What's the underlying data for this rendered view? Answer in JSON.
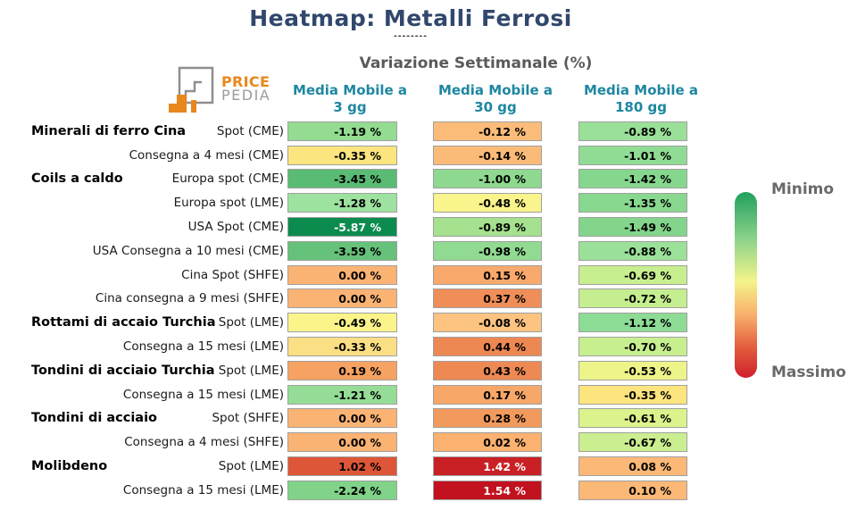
{
  "title": "Heatmap: Metalli Ferrosi",
  "title_underline": "--------",
  "subtitle": "Variazione Settimanale (%)",
  "logo": {
    "top": "PRICE",
    "bottom": "PEDIA"
  },
  "columns": [
    {
      "line1": "Media Mobile a",
      "line2": "3 gg"
    },
    {
      "line1": "Media Mobile a",
      "line2": "30 gg"
    },
    {
      "line1": "Media Mobile a",
      "line2": "180 gg"
    }
  ],
  "legend": {
    "min_label": "Minimo",
    "max_label": "Massimo"
  },
  "colors": {
    "title": "#31476c",
    "subtitle": "#5a5a5a",
    "column_header": "#1e87a0",
    "legend_label": "#6a6a6a",
    "logo_orange": "#e8871c",
    "logo_gray": "#9c9c9c",
    "cell_border": "#a0a0a0",
    "legend_gradient": [
      "#21a05e",
      "#8fd48b",
      "#f3f48a",
      "#f9b06c",
      "#e25b3c",
      "#d0202d"
    ]
  },
  "chart_data": {
    "type": "heatmap",
    "title": "Heatmap: Metalli Ferrosi",
    "subtitle": "Variazione Settimanale (%)",
    "unit": "%",
    "columns": [
      "Media Mobile a 3 gg",
      "Media Mobile a 30 gg",
      "Media Mobile a 180 gg"
    ],
    "legend": {
      "top": "Minimo",
      "bottom": "Massimo",
      "scale": "green = minimo, red = massimo"
    },
    "rows": [
      {
        "group": "Minerali di ferro Cina",
        "label": "Spot (CME)",
        "values": [
          -1.19,
          -0.12,
          -0.89
        ],
        "display": [
          "-1.19 %",
          "-0.12 %",
          "-0.89 %"
        ],
        "cell_colors": [
          "#93dc92",
          "#fbbc79",
          "#9ae098"
        ],
        "text_colors": [
          "#000000",
          "#000000",
          "#000000"
        ]
      },
      {
        "group": "",
        "label": "Consegna a 4 mesi (CME)",
        "values": [
          -0.35,
          -0.14,
          -1.01
        ],
        "display": [
          "-0.35 %",
          "-0.14 %",
          "-1.01 %"
        ],
        "cell_colors": [
          "#fbe57e",
          "#fbbb78",
          "#90dc94"
        ],
        "text_colors": [
          "#000000",
          "#000000",
          "#000000"
        ]
      },
      {
        "group": "Coils a caldo",
        "label": "Europa spot (CME)",
        "values": [
          -3.45,
          -1.0,
          -1.42
        ],
        "display": [
          "-3.45 %",
          "-1.00 %",
          "-1.42 %"
        ],
        "cell_colors": [
          "#5abb74",
          "#8ed98f",
          "#86d78e"
        ],
        "text_colors": [
          "#000000",
          "#000000",
          "#000000"
        ]
      },
      {
        "group": "",
        "label": "Europa spot (LME)",
        "values": [
          -1.28,
          -0.48,
          -1.35
        ],
        "display": [
          "-1.28 %",
          "-0.48 %",
          "-1.35 %"
        ],
        "cell_colors": [
          "#9ee2a0",
          "#f9f48c",
          "#89d88f"
        ],
        "text_colors": [
          "#000000",
          "#000000",
          "#000000"
        ]
      },
      {
        "group": "",
        "label": "USA Spot (CME)",
        "values": [
          -5.87,
          -0.89,
          -1.49
        ],
        "display": [
          "-5.87 %",
          "-0.89 %",
          "-1.49 %"
        ],
        "cell_colors": [
          "#0b8b4e",
          "#a5e18e",
          "#83d58c"
        ],
        "text_colors": [
          "#ffffff",
          "#000000",
          "#000000"
        ]
      },
      {
        "group": "",
        "label": "USA Consegna a 10 mesi (CME)",
        "values": [
          -3.59,
          -0.98,
          -0.88
        ],
        "display": [
          "-3.59 %",
          "-0.98 %",
          "-0.88 %"
        ],
        "cell_colors": [
          "#66c17a",
          "#91da91",
          "#9be199"
        ],
        "text_colors": [
          "#000000",
          "#000000",
          "#000000"
        ]
      },
      {
        "group": "",
        "label": "Cina Spot (SHFE)",
        "values": [
          0.0,
          0.15,
          -0.69
        ],
        "display": [
          "0.00 %",
          "0.15 %",
          "-0.69 %"
        ],
        "cell_colors": [
          "#fbb374",
          "#f8a96b",
          "#c8ef8f"
        ],
        "text_colors": [
          "#000000",
          "#000000",
          "#000000"
        ]
      },
      {
        "group": "",
        "label": "Cina consegna a 9 mesi (SHFE)",
        "values": [
          0.0,
          0.37,
          -0.72
        ],
        "display": [
          "0.00 %",
          "0.37 %",
          "-0.72 %"
        ],
        "cell_colors": [
          "#fbb374",
          "#ef8e58",
          "#c5ee90"
        ],
        "text_colors": [
          "#000000",
          "#000000",
          "#000000"
        ]
      },
      {
        "group": "Rottami di accaio Turchia",
        "label": "Spot (LME)",
        "values": [
          -0.49,
          -0.08,
          -1.12
        ],
        "display": [
          "-0.49 %",
          "-0.08 %",
          "-1.12 %"
        ],
        "cell_colors": [
          "#faf48b",
          "#fcc381",
          "#8cdc95"
        ],
        "text_colors": [
          "#000000",
          "#000000",
          "#000000"
        ]
      },
      {
        "group": "",
        "label": "Consegna a 15 mesi (LME)",
        "values": [
          -0.33,
          0.44,
          -0.7
        ],
        "display": [
          "-0.33 %",
          "0.44 %",
          "-0.70 %"
        ],
        "cell_colors": [
          "#fbdf84",
          "#ee8853",
          "#c7ef8f"
        ],
        "text_colors": [
          "#000000",
          "#000000",
          "#000000"
        ]
      },
      {
        "group": "Tondini di acciaio Turchia",
        "label": "Spot (LME)",
        "values": [
          0.19,
          0.43,
          -0.53
        ],
        "display": [
          "0.19 %",
          "0.43 %",
          "-0.53 %"
        ],
        "cell_colors": [
          "#f5a263",
          "#ee8954",
          "#edf489"
        ],
        "text_colors": [
          "#000000",
          "#000000",
          "#000000"
        ]
      },
      {
        "group": "",
        "label": "Consegna a 15 mesi (LME)",
        "values": [
          -1.21,
          0.17,
          -0.35
        ],
        "display": [
          "-1.21 %",
          "0.17 %",
          "-0.35 %"
        ],
        "cell_colors": [
          "#95dd96",
          "#f7a768",
          "#fce47e"
        ],
        "text_colors": [
          "#000000",
          "#000000",
          "#000000"
        ]
      },
      {
        "group": "Tondini di acciaio",
        "label": "Spot (SHFE)",
        "values": [
          0.0,
          0.28,
          -0.61
        ],
        "display": [
          "0.00 %",
          "0.28 %",
          "-0.61 %"
        ],
        "cell_colors": [
          "#fbb374",
          "#f29a5e",
          "#dcf28c"
        ],
        "text_colors": [
          "#000000",
          "#000000",
          "#000000"
        ]
      },
      {
        "group": "",
        "label": "Consegna a 4 mesi (SHFE)",
        "values": [
          0.0,
          0.02,
          -0.67
        ],
        "display": [
          "0.00 %",
          "0.02 %",
          "-0.67 %"
        ],
        "cell_colors": [
          "#fbb374",
          "#fbb170",
          "#cbee90"
        ],
        "text_colors": [
          "#000000",
          "#000000",
          "#000000"
        ]
      },
      {
        "group": "Molibdeno",
        "label": "Spot (LME)",
        "values": [
          1.02,
          1.42,
          0.08
        ],
        "display": [
          "1.02 %",
          "1.42 %",
          "0.08 %"
        ],
        "cell_colors": [
          "#dc5637",
          "#c92026",
          "#fbb877"
        ],
        "text_colors": [
          "#000000",
          "#ffffff",
          "#000000"
        ]
      },
      {
        "group": "",
        "label": "Consegna a 15 mesi (LME)",
        "values": [
          -2.24,
          1.54,
          0.1
        ],
        "display": [
          "-2.24 %",
          "1.54 %",
          "0.10 %"
        ],
        "cell_colors": [
          "#80d389",
          "#c2111f",
          "#fbb877"
        ],
        "text_colors": [
          "#000000",
          "#ffffff",
          "#000000"
        ]
      }
    ]
  }
}
